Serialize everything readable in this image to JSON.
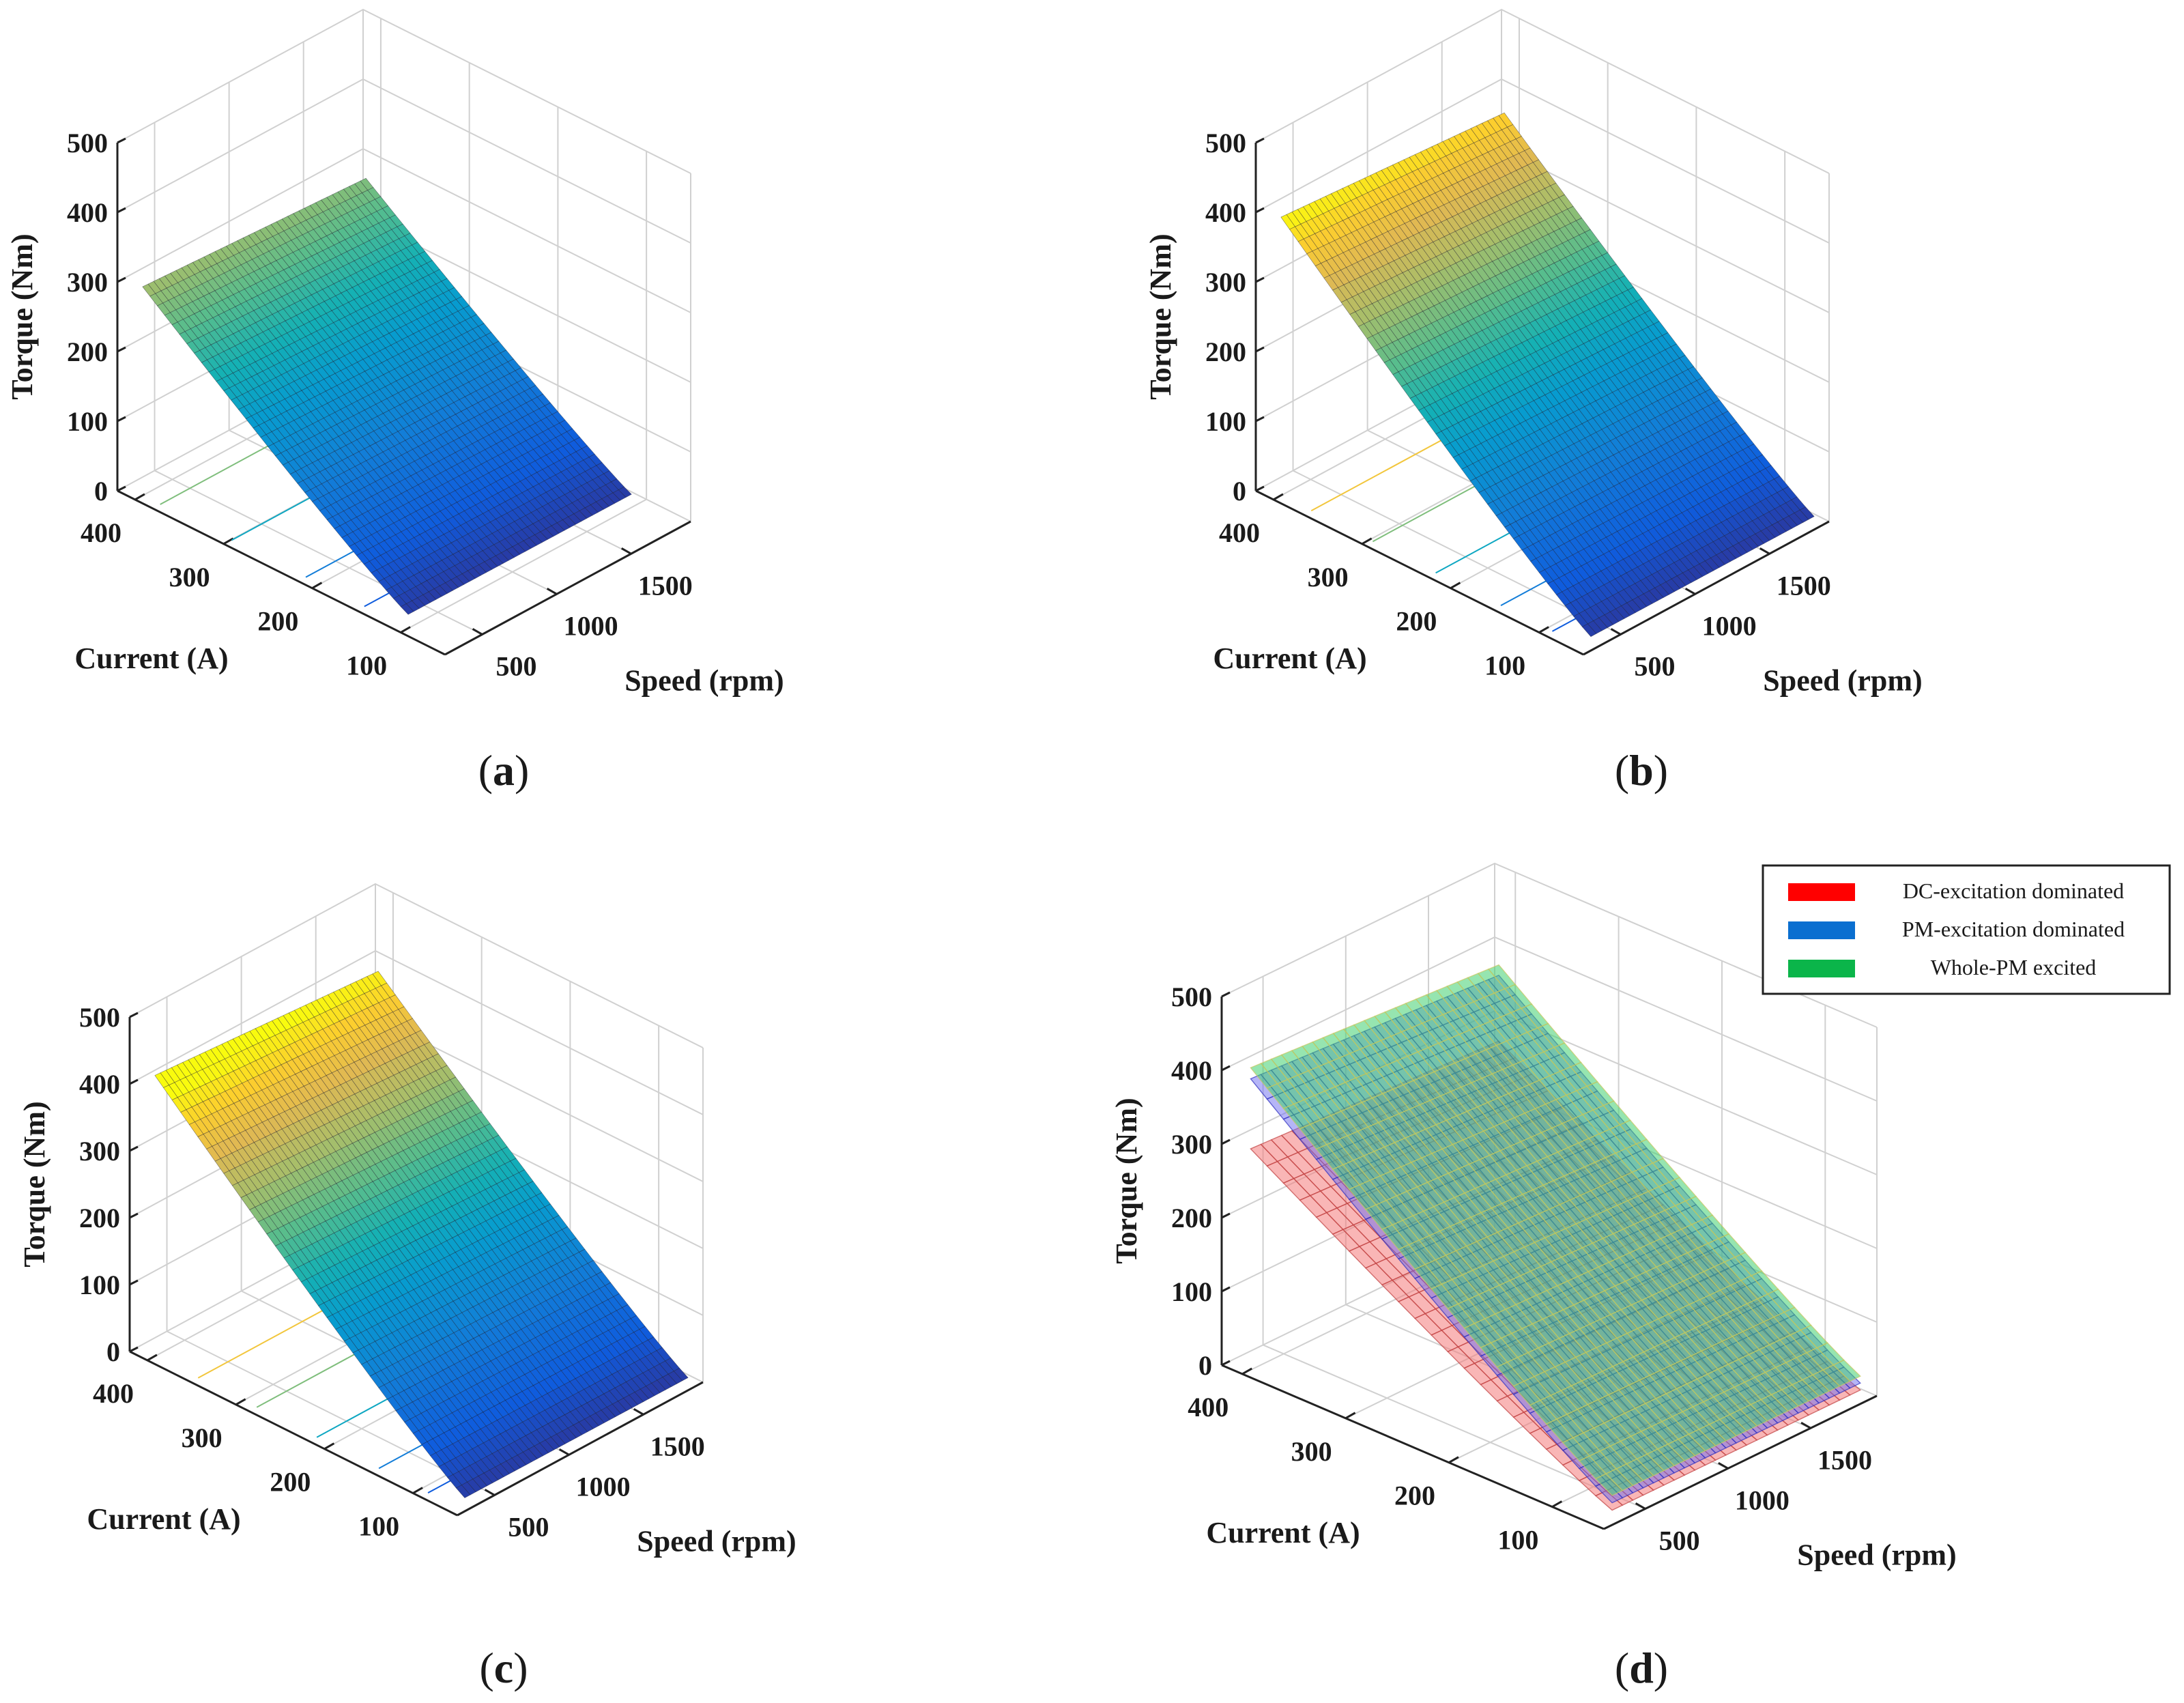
{
  "figure": {
    "captions": [
      "(a)",
      "(b)",
      "(c)",
      "(d)"
    ],
    "caption_letters": [
      "a",
      "b",
      "c",
      "d"
    ]
  },
  "chart_data": [
    {
      "type": "surface3d",
      "panel": "a",
      "zlabel": "Torque (Nm)",
      "xlabel": "Current (A)",
      "ylabel": "Speed (rpm)",
      "zticks": [
        "0",
        "100",
        "200",
        "300",
        "400",
        "500"
      ],
      "xticks": [
        "100",
        "200",
        "300",
        "400"
      ],
      "yticks": [
        "500",
        "1000",
        "1500"
      ],
      "zlim": [
        0,
        500
      ],
      "current_range": [
        100,
        400
      ],
      "speed_range": [
        300,
        1800
      ],
      "torque_low_current": 20,
      "torque_high_current": 300,
      "colormap": "parula"
    },
    {
      "type": "surface3d",
      "panel": "b",
      "zlabel": "Torque (Nm)",
      "xlabel": "Current (A)",
      "ylabel": "Speed (rpm)",
      "zticks": [
        "0",
        "100",
        "200",
        "300",
        "400",
        "500"
      ],
      "xticks": [
        "100",
        "200",
        "300",
        "400"
      ],
      "yticks": [
        "500",
        "1000",
        "1500"
      ],
      "zlim": [
        0,
        500
      ],
      "current_range": [
        50,
        400
      ],
      "speed_range": [
        300,
        1800
      ],
      "torque_low_current": 20,
      "torque_high_current": 400,
      "colormap": "parula"
    },
    {
      "type": "surface3d",
      "panel": "c",
      "zlabel": "Torque (Nm)",
      "xlabel": "Current (A)",
      "ylabel": "Speed (rpm)",
      "zticks": [
        "0",
        "100",
        "200",
        "300",
        "400",
        "500"
      ],
      "xticks": [
        "100",
        "200",
        "300",
        "400"
      ],
      "yticks": [
        "500",
        "1000",
        "1500"
      ],
      "zlim": [
        0,
        500
      ],
      "current_range": [
        50,
        400
      ],
      "speed_range": [
        300,
        1800
      ],
      "torque_low_current": 20,
      "torque_high_current": 420,
      "colormap": "parula"
    },
    {
      "type": "surface3d",
      "panel": "d",
      "zlabel": "Torque (Nm)",
      "xlabel": "Current (A)",
      "ylabel": "Speed (rpm)",
      "zticks": [
        "0",
        "100",
        "200",
        "300",
        "400",
        "500"
      ],
      "xticks": [
        "100",
        "200",
        "300",
        "400"
      ],
      "yticks": [
        "500",
        "1000",
        "1500"
      ],
      "zlim": [
        0,
        500
      ],
      "legend": [
        "DC-excitation dominated",
        "PM-excitation dominated",
        "Whole-PM excited"
      ],
      "legend_position": "top-right",
      "series": [
        {
          "name": "DC-excitation dominated",
          "color": "#ff0000",
          "current_range": [
            50,
            400
          ],
          "speed_range": [
            300,
            1800
          ],
          "torque_low_current": 20,
          "torque_high_current": 300
        },
        {
          "name": "PM-excitation dominated",
          "color": "#0066cc",
          "current_range": [
            50,
            400
          ],
          "speed_range": [
            300,
            1800
          ],
          "torque_low_current": 30,
          "torque_high_current": 395
        },
        {
          "name": "Whole-PM excited",
          "color": "#00cc44",
          "current_range": [
            50,
            400
          ],
          "speed_range": [
            300,
            1800
          ],
          "torque_low_current": 40,
          "torque_high_current": 410
        }
      ]
    }
  ]
}
